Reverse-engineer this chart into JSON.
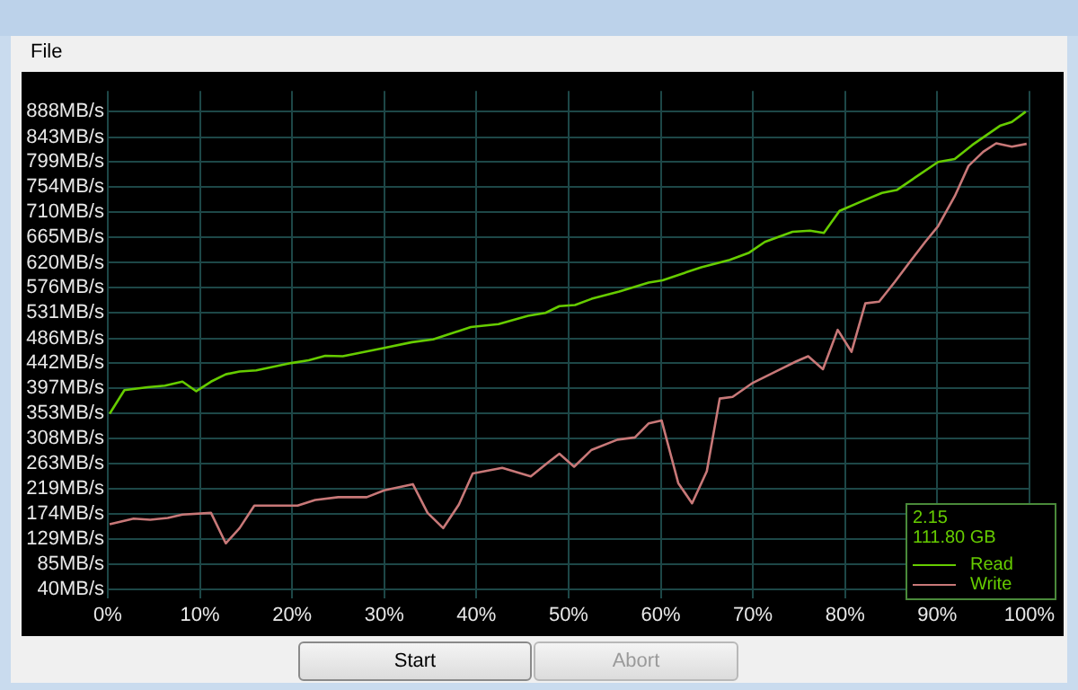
{
  "chart_data": {
    "type": "line",
    "annotations": [
      "File",
      "2.15",
      "111.80 GB",
      "Start",
      "Abort"
    ],
    "xlim": [
      0,
      100
    ],
    "xticks": [
      {
        "value": 0,
        "label": "0%"
      },
      {
        "value": 10,
        "label": "10%"
      },
      {
        "value": 20,
        "label": "20%"
      },
      {
        "value": 30,
        "label": "30%"
      },
      {
        "value": 40,
        "label": "40%"
      },
      {
        "value": 50,
        "label": "50%"
      },
      {
        "value": 60,
        "label": "60%"
      },
      {
        "value": 70,
        "label": "70%"
      },
      {
        "value": 80,
        "label": "80%"
      },
      {
        "value": 90,
        "label": "90%"
      },
      {
        "value": 100,
        "label": "100%"
      }
    ],
    "ylim": [
      25,
      925
    ],
    "yticks": [
      {
        "value": 40,
        "label": "40MB/s"
      },
      {
        "value": 85,
        "label": "85MB/s"
      },
      {
        "value": 129,
        "label": "129MB/s"
      },
      {
        "value": 174,
        "label": "174MB/s"
      },
      {
        "value": 219,
        "label": "219MB/s"
      },
      {
        "value": 263,
        "label": "263MB/s"
      },
      {
        "value": 308,
        "label": "308MB/s"
      },
      {
        "value": 353,
        "label": "353MB/s"
      },
      {
        "value": 397,
        "label": "397MB/s"
      },
      {
        "value": 442,
        "label": "442MB/s"
      },
      {
        "value": 486,
        "label": "486MB/s"
      },
      {
        "value": 531,
        "label": "531MB/s"
      },
      {
        "value": 576,
        "label": "576MB/s"
      },
      {
        "value": 620,
        "label": "620MB/s"
      },
      {
        "value": 665,
        "label": "665MB/s"
      },
      {
        "value": 710,
        "label": "710MB/s"
      },
      {
        "value": 754,
        "label": "754MB/s"
      },
      {
        "value": 799,
        "label": "799MB/s"
      },
      {
        "value": 843,
        "label": "843MB/s"
      },
      {
        "value": 888,
        "label": "888MB/s"
      }
    ],
    "grid": true,
    "legend": "bottom right",
    "marker": "none",
    "line_style": "solid",
    "series": [
      {
        "name": "Read",
        "color": "#66cc00",
        "x": [
          0.2,
          1.8,
          4.3,
          6.2,
          8.1,
          9.6,
          11.2,
          12.8,
          14.3,
          16.1,
          19.9,
          21.8,
          23.6,
          25.5,
          30,
          33,
          35.3,
          39.4,
          42.4,
          45.6,
          47.5,
          49,
          50.7,
          52.5,
          55.5,
          58.7,
          60.2,
          64.4,
          67.5,
          69.6,
          71.3,
          74.3,
          76.2,
          77.7,
          79.4,
          81.8,
          84,
          85.6,
          90.1,
          91.9,
          93.8,
          96.8,
          98.1,
          99.6
        ],
        "values": [
          352,
          394,
          399,
          402,
          409,
          392,
          409,
          422,
          427,
          429,
          442,
          447,
          455,
          454,
          469,
          479,
          484,
          506,
          511,
          526,
          531,
          543,
          545,
          556,
          569,
          585,
          589,
          612,
          625,
          638,
          657,
          675,
          677,
          673,
          712,
          729,
          744,
          749,
          799,
          804,
          829,
          863,
          870,
          888
        ]
      },
      {
        "name": "Write",
        "color": "#c87878",
        "x": [
          0.2,
          2.8,
          4.6,
          6.5,
          8.1,
          11.2,
          12.8,
          14.3,
          15.9,
          20.6,
          22.5,
          25,
          28.1,
          30,
          33.1,
          34.7,
          36.4,
          38.1,
          39.6,
          42.8,
          45.9,
          47.8,
          49,
          50.6,
          52.5,
          55.3,
          57.2,
          58.7,
          60.1,
          61.9,
          63.4,
          65,
          66.4,
          67.8,
          70,
          73.1,
          74.7,
          76,
          77.6,
          79.2,
          80.7,
          82.2,
          83.7,
          85.4,
          87.2,
          88.7,
          90.1,
          91.9,
          93.4,
          95,
          96.4,
          98.1,
          99.7
        ],
        "values": [
          156,
          166,
          164,
          167,
          173,
          176,
          122,
          149,
          189,
          189,
          199,
          204,
          204,
          216,
          227,
          176,
          149,
          191,
          246,
          256,
          241,
          266,
          281,
          258,
          288,
          306,
          310,
          335,
          340,
          229,
          193,
          250,
          379,
          382,
          407,
          432,
          445,
          454,
          431,
          501,
          462,
          548,
          551,
          586,
          625,
          657,
          685,
          738,
          792,
          817,
          832,
          826,
          831
        ]
      }
    ]
  }
}
